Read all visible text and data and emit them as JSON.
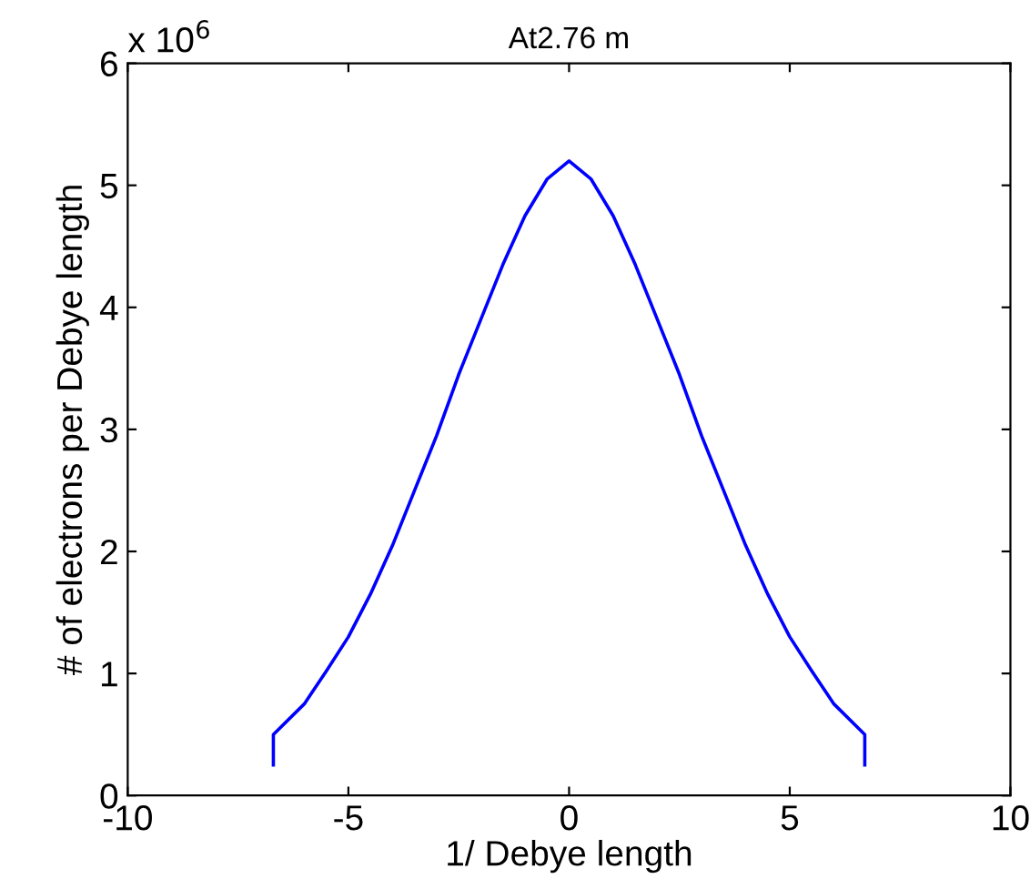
{
  "chart_data": {
    "type": "line",
    "title": "At2.76 m",
    "xlabel": "1/ Debye length",
    "ylabel": "# of electrons per Debye length",
    "annotations": [
      "x 10$^{6}$"
    ],
    "series": [
      {
        "color": "#0000ff",
        "x": [
          -6.7,
          -6.7,
          -6,
          -5.5,
          -5,
          -4.5,
          -4,
          -3.5,
          -3,
          -2.5,
          -2,
          -1.5,
          -1,
          -0.5,
          0,
          0.5,
          1,
          1.5,
          2,
          2.5,
          3,
          3.5,
          4,
          4.5,
          5,
          5.5,
          6,
          6.7,
          6.7
        ],
        "values": [
          0.25,
          0.5,
          0.75,
          1.02,
          1.3,
          1.65,
          2.05,
          2.5,
          2.95,
          3.45,
          3.9,
          4.35,
          4.75,
          5.05,
          5.2,
          5.05,
          4.75,
          4.35,
          3.9,
          3.45,
          2.95,
          2.5,
          2.05,
          1.65,
          1.3,
          1.02,
          0.75,
          0.5,
          0.25
        ]
      }
    ],
    "xlim": [
      -10,
      10
    ],
    "ylim": [
      0,
      6
    ],
    "xticks": [
      -10,
      -5,
      0,
      5,
      10
    ],
    "yticks": [
      0,
      1,
      2,
      3,
      4,
      5,
      6
    ],
    "grid": false,
    "legend": false,
    "marker": "none",
    "line_style": "solid"
  }
}
